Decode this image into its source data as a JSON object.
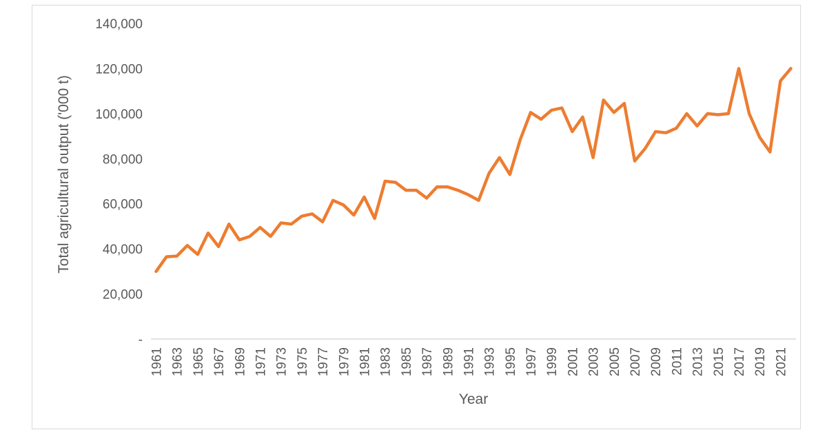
{
  "chart_data": {
    "type": "line",
    "title": "",
    "xlabel": "Year",
    "ylabel": "Total agricultural output ('000 t)",
    "ylim": [
      0,
      140000
    ],
    "yticks": [
      0,
      20000,
      40000,
      60000,
      80000,
      100000,
      120000,
      140000
    ],
    "ytick_labels": [
      "-",
      "20,000",
      "40,000",
      "60,000",
      "80,000",
      "100,000",
      "120,000",
      "140,000"
    ],
    "xtick_labels": [
      "1961",
      "1963",
      "1965",
      "1967",
      "1969",
      "1971",
      "1973",
      "1975",
      "1977",
      "1979",
      "1981",
      "1983",
      "1985",
      "1987",
      "1989",
      "1991",
      "1993",
      "1995",
      "1997",
      "1999",
      "2001",
      "2003",
      "2005",
      "2007",
      "2009",
      "2011",
      "2013",
      "2015",
      "2017",
      "2019",
      "2021"
    ],
    "grid": false,
    "legend": "none",
    "line_color": "#ED7D31",
    "series": [
      {
        "x": [
          1961,
          1962,
          1963,
          1964,
          1965,
          1966,
          1967,
          1968,
          1969,
          1970,
          1971,
          1972,
          1973,
          1974,
          1975,
          1976,
          1977,
          1978,
          1979,
          1980,
          1981,
          1982,
          1983,
          1984,
          1985,
          1986,
          1987,
          1988,
          1989,
          1990,
          1991,
          1992,
          1993,
          1994,
          1995,
          1996,
          1997,
          1998,
          1999,
          2000,
          2001,
          2002,
          2003,
          2004,
          2005,
          2006,
          2007,
          2008,
          2009,
          2010,
          2011,
          2012,
          2013,
          2014,
          2015,
          2016,
          2017,
          2018,
          2019,
          2020,
          2021,
          2022
        ],
        "values": [
          30000,
          36500,
          36800,
          41500,
          37500,
          47000,
          41000,
          51000,
          44000,
          45500,
          49500,
          45500,
          51500,
          51000,
          54500,
          55500,
          52000,
          61500,
          59500,
          55000,
          63000,
          53500,
          70000,
          69500,
          66000,
          66000,
          62500,
          67500,
          67500,
          66000,
          64000,
          61500,
          73500,
          80500,
          73000,
          88500,
          100500,
          97500,
          101500,
          102500,
          92000,
          98500,
          80500,
          106000,
          100500,
          104500,
          79000,
          84500,
          92000,
          91500,
          93500,
          100000,
          94500,
          100000,
          99500,
          100000,
          120000,
          100000,
          89500,
          83000,
          114500,
          120000
        ]
      }
    ]
  }
}
